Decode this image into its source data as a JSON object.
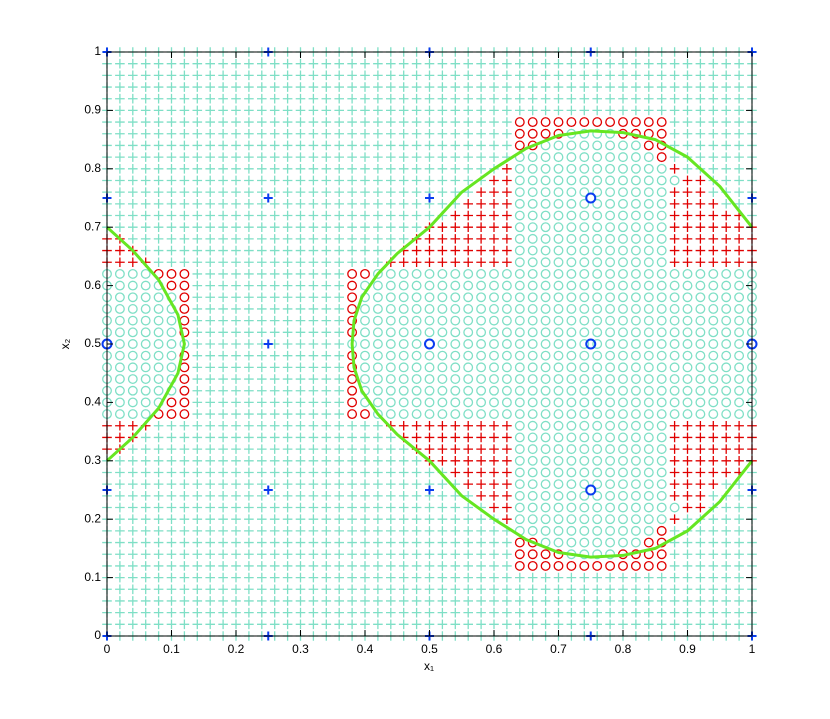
{
  "chart_data": {
    "type": "scatter",
    "xlabel": "x₁",
    "ylabel": "x₂",
    "xlim": [
      0,
      1
    ],
    "ylim": [
      0,
      1
    ],
    "xticks": [
      0,
      0.1,
      0.2,
      0.3,
      0.4,
      0.5,
      0.6,
      0.7,
      0.8,
      0.9,
      1
    ],
    "yticks": [
      0,
      0.1,
      0.2,
      0.3,
      0.4,
      0.5,
      0.6,
      0.7,
      0.8,
      0.9,
      1
    ],
    "grid_x": [
      0,
      0.02,
      0.04,
      0.06,
      0.08,
      0.1,
      0.12,
      0.14,
      0.16,
      0.18,
      0.2,
      0.22,
      0.24,
      0.26,
      0.28,
      0.3,
      0.32,
      0.34,
      0.36,
      0.38,
      0.4,
      0.42,
      0.44,
      0.46,
      0.48,
      0.5,
      0.52,
      0.54,
      0.56,
      0.58,
      0.6,
      0.62,
      0.64,
      0.66,
      0.68,
      0.7,
      0.72,
      0.74,
      0.76,
      0.78,
      0.8,
      0.82,
      0.84,
      0.86,
      0.88,
      0.9,
      0.92,
      0.94,
      0.96,
      0.98,
      1
    ],
    "grid_y": [
      0,
      0.02,
      0.04,
      0.06,
      0.08,
      0.1,
      0.12,
      0.14,
      0.16,
      0.18,
      0.2,
      0.22,
      0.24,
      0.26,
      0.28,
      0.3,
      0.32,
      0.34,
      0.36,
      0.38,
      0.4,
      0.42,
      0.44,
      0.46,
      0.48,
      0.5,
      0.52,
      0.54,
      0.56,
      0.58,
      0.6,
      0.62,
      0.64,
      0.66,
      0.68,
      0.7,
      0.72,
      0.74,
      0.76,
      0.78,
      0.8,
      0.82,
      0.84,
      0.86,
      0.88,
      0.9,
      0.92,
      0.94,
      0.96,
      0.98,
      1
    ],
    "grid_styles": {
      "+": {
        "marker": "plus",
        "color": "#7fdfc6"
      },
      "o": {
        "marker": "circle",
        "color": "#7fdfc6"
      },
      "p": {
        "marker": "plus",
        "color": "#e00000"
      },
      "q": {
        "marker": "circle",
        "color": "#e00000"
      }
    },
    "grid_rows": [
      "+++++++++++++++++++++++++++++++++++++++++++++++++++",
      "+++++++++++++++++++++++++++++++++++++++++++++++++++",
      "+++++++++++++++++++++++++++++++++++++++++++++++++++",
      "+++++++++++++++++++++++++++++++++++++++++++++++++++",
      "+++++++++++++++++++++++++++++++++++++++++++++++++++",
      "+++++++++++++++++++++++++++++++++++++++++++++++++++",
      "++++++++++++++++++++++++++++++++qqqqqqqqqqqq+++++++",
      "++++++++++++++++++++++++++++++++qqqqooooqqqq+++++++",
      "++++++++++++++++++++++++++++++++qqooooooooqq+++++++",
      "++++++++++++++++++++++++++++++++oooooooooooq+++++++",
      "+++++++++++++++++++++++++++++++poooooooooooop++++++",
      "++++++++++++++++++++++++++++++ppooooooooooooopp+++++",
      "+++++++++++++++++++++++++++++pppooooooooooooppp++++",
      "++++++++++++++++++++++++++++ppppoooooooooooopppp+++",
      "+++++++++++++++++++++++++++pppppoooooooooooopppppp++",
      "+++++++++++++++++++++++++pppppppoooooooooooopppppppp",
      "pp++++++++++++++++++++++ppppppppoooooooooooopppppppp",
      "ppp++++++++++++++++++++pppppppppoooooooooooopppppppp",
      "pppp++++++++++++++++++ppppppppppoooooooooooopppppppp",
      "ooooqqq++++++++++++qqoooooooooooooooooooooooooooooo",
      "oooooqq++++++++++++qooooooooooooooooooooooooooooooo",
      "ooooooq++++++++++++qooooooooooooooooooooooooooooooo",
      "ooooooq++++++++++++qooooooooooooooooooooooooooooooo",
      "ooooooq++++++++++++qooooooooooooooooooooooooooooooo",
      "ooooooq++++++++++++qooooooooooooooooooooooooooooooo",
      "ooooooo++++++++++++oooooooooooooooooooooooooooooooo",
      "ooooooq++++++++++++qooooooooooooooooooooooooooooooo",
      "ooooooq++++++++++++qooooooooooooooooooooooooooooooo",
      "ooooooq++++++++++++qooooooooooooooooooooooooooooooo",
      "ooooooq++++++++++++qooooooooooooooooooooooooooooooo",
      "oooooqq++++++++++++qooooooooooooooooooooooooooooooo",
      "ooooqqq++++++++++++qqoooooooooooooooooooooooooooooo",
      "pppp++++++++++++++++++ppppppppppoooooooooooopppppppp",
      "ppp++++++++++++++++++++pppppppppoooooooooooopppppppp",
      "pp++++++++++++++++++++++ppppppppoooooooooooopppppppp",
      "+++++++++++++++++++++++++pppppppoooooooooooopppppppp",
      "+++++++++++++++++++++++++++pppppoooooooooooopppppp++",
      "++++++++++++++++++++++++++++ppppoooooooooooopppp+++",
      "+++++++++++++++++++++++++++++pppooooooooooooppp++++",
      "++++++++++++++++++++++++++++++ppooooooooooooopp+++++",
      "+++++++++++++++++++++++++++++++poooooooooooop++++++",
      "++++++++++++++++++++++++++++++++oooooooooooq+++++++",
      "++++++++++++++++++++++++++++++++qqooooooooqq+++++++",
      "++++++++++++++++++++++++++++++++qqqqooooqqqq+++++++",
      "++++++++++++++++++++++++++++++++qqqqqqqqqqqq+++++++",
      "+++++++++++++++++++++++++++++++++++++++++++++++++++",
      "+++++++++++++++++++++++++++++++++++++++++++++++++++",
      "+++++++++++++++++++++++++++++++++++++++++++++++++++",
      "+++++++++++++++++++++++++++++++++++++++++++++++++++",
      "+++++++++++++++++++++++++++++++++++++++++++++++++++",
      "+++++++++++++++++++++++++++++++++++++++++++++++++++"
    ],
    "boundaries": [
      {
        "color": "#66e622",
        "x": [
          0,
          0.04,
          0.08,
          0.11,
          0.12,
          0.11,
          0.08,
          0.04,
          0
        ],
        "y": [
          0.7,
          0.66,
          0.61,
          0.55,
          0.5,
          0.45,
          0.39,
          0.34,
          0.3
        ]
      },
      {
        "color": "#66e622",
        "x": [
          1,
          0.95,
          0.9,
          0.85,
          0.8,
          0.75,
          0.7,
          0.65,
          0.6,
          0.55,
          0.5,
          0.45,
          0.42,
          0.395,
          0.383,
          0.38,
          0.383,
          0.395,
          0.42,
          0.45,
          0.5,
          0.55,
          0.6,
          0.65,
          0.7,
          0.75,
          0.8,
          0.85,
          0.9,
          0.95,
          1
        ],
        "y": [
          0.7,
          0.77,
          0.82,
          0.85,
          0.862,
          0.865,
          0.857,
          0.835,
          0.8,
          0.76,
          0.7,
          0.655,
          0.62,
          0.58,
          0.54,
          0.5,
          0.46,
          0.42,
          0.38,
          0.345,
          0.3,
          0.24,
          0.2,
          0.165,
          0.143,
          0.135,
          0.138,
          0.15,
          0.18,
          0.23,
          0.3
        ]
      }
    ],
    "series": [
      {
        "marker": "plus",
        "color": "#0a3cf0",
        "x": [
          0,
          0.25,
          0.5,
          0.75,
          1,
          0,
          0.25,
          0.5,
          1,
          0.25,
          0,
          0.25,
          0.5,
          1,
          0,
          0.25,
          0.5,
          0.75,
          1
        ],
        "y": [
          0,
          0,
          0,
          0,
          0,
          0.25,
          0.25,
          0.25,
          0.25,
          0.5,
          0.75,
          0.75,
          0.75,
          0.75,
          1,
          1,
          1,
          1,
          1
        ]
      },
      {
        "marker": "circle",
        "color": "#0a3cf0",
        "x": [
          0,
          0.5,
          0.75,
          1,
          0.75,
          0.75
        ],
        "y": [
          0.5,
          0.5,
          0.5,
          0.5,
          0.25,
          0.75
        ]
      }
    ]
  }
}
